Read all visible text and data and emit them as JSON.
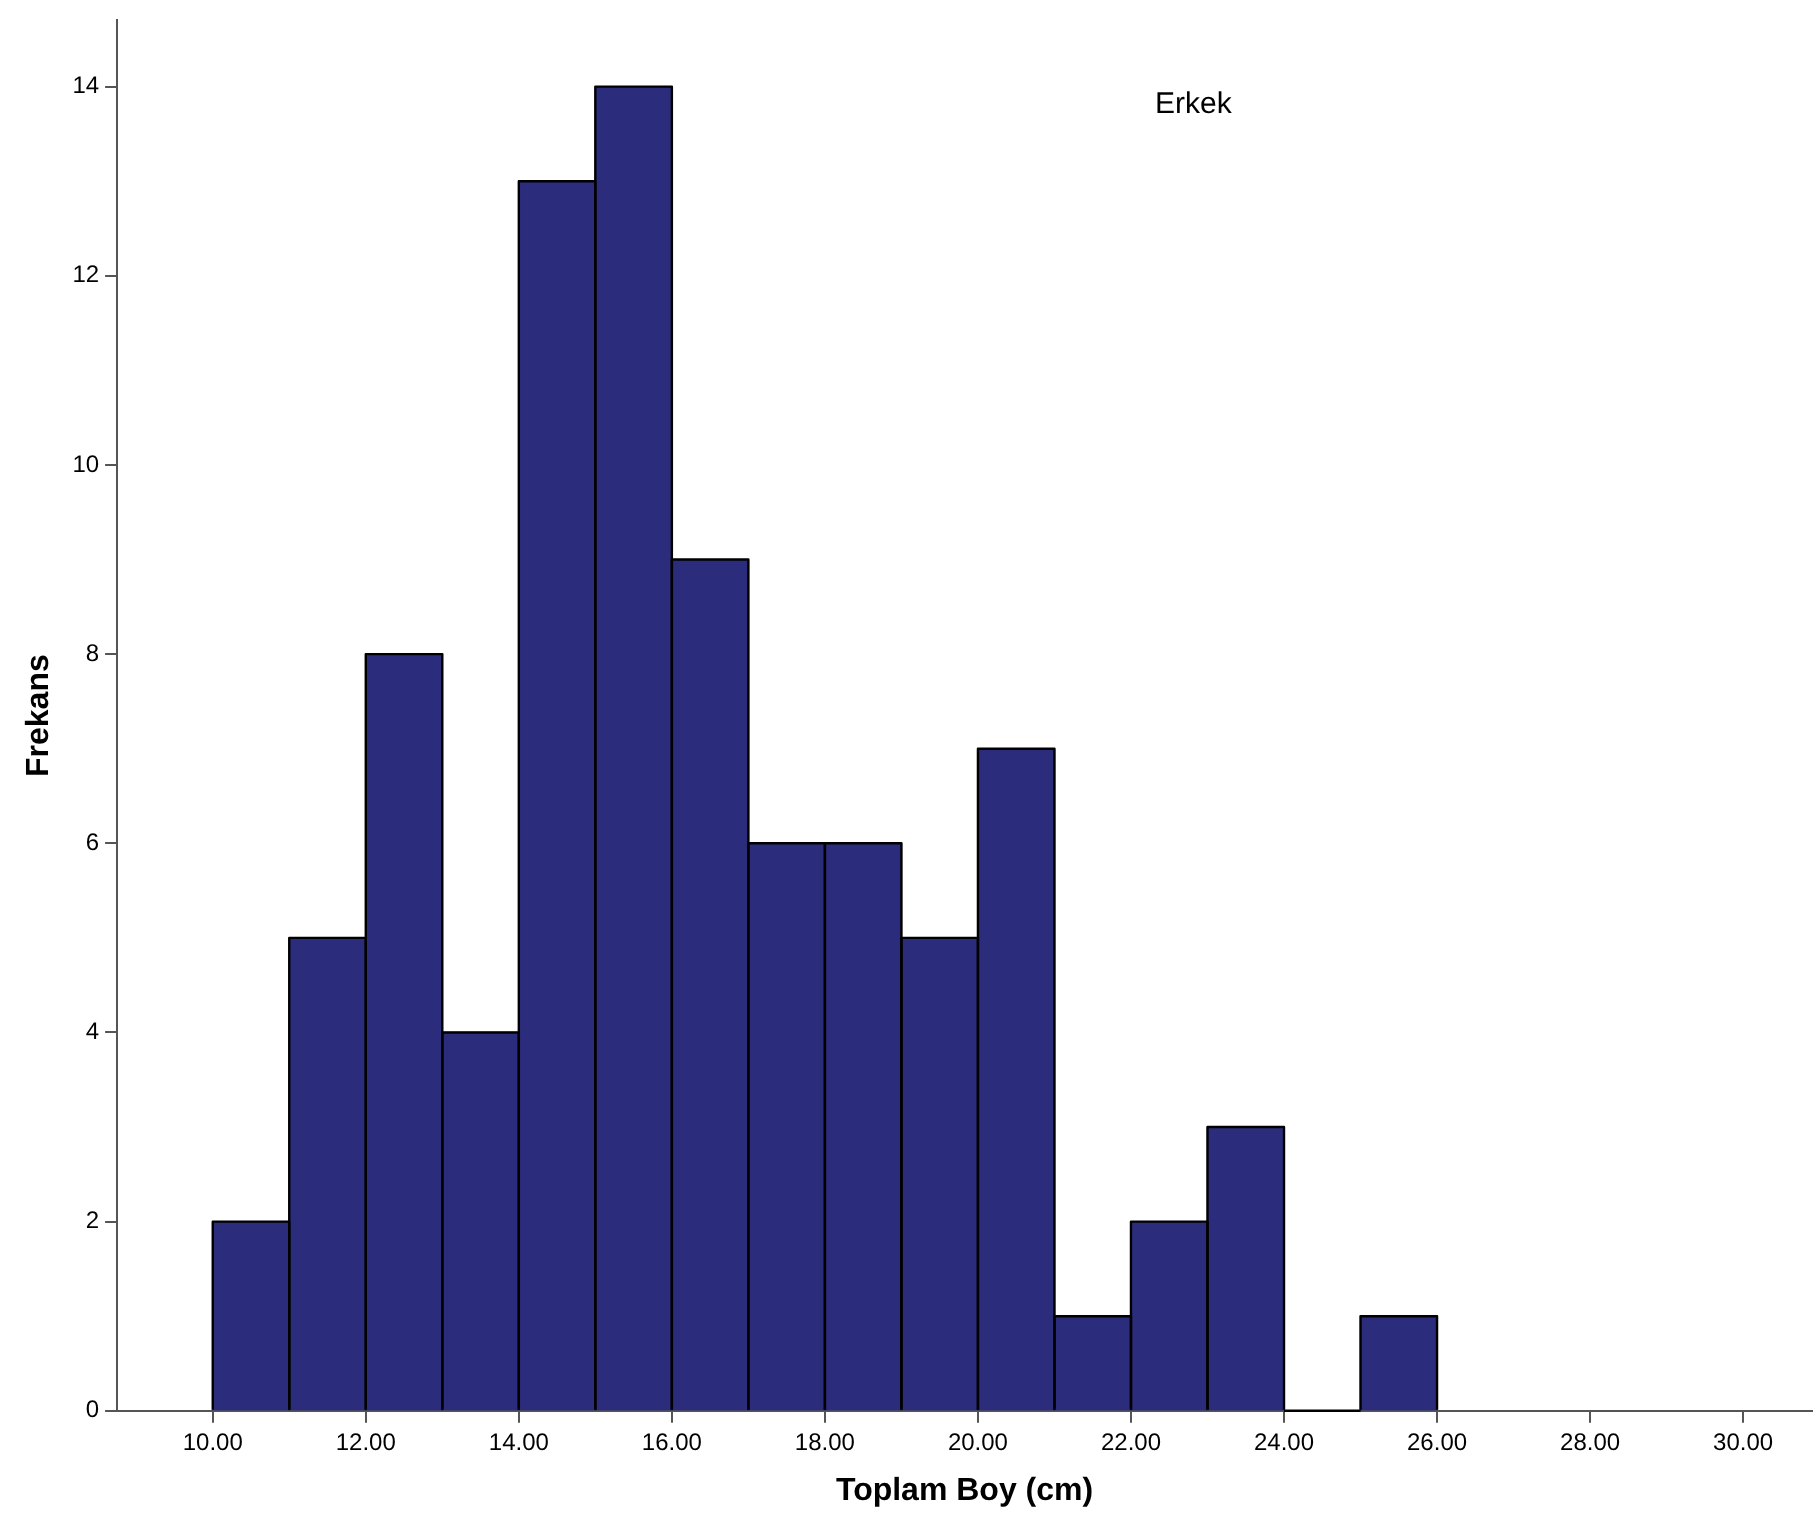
{
  "chart_data": {
    "type": "histogram",
    "xlabel": "Toplam Boy (cm)",
    "ylabel": "Frekans",
    "annotations": [
      "Erkek"
    ],
    "bins": [
      10,
      11,
      12,
      13,
      14,
      15,
      16,
      17,
      18,
      19,
      20,
      21,
      22,
      23,
      24,
      25,
      26
    ],
    "values": [
      2,
      5,
      8,
      4,
      13,
      14,
      9,
      6,
      6,
      5,
      7,
      1,
      2,
      3,
      0,
      1
    ],
    "color": "#2b2d7c",
    "xlim": [
      8.75,
      30.9
    ],
    "xticks": [
      {
        "value": 10,
        "label": "10.00"
      },
      {
        "value": 12,
        "label": "12.00"
      },
      {
        "value": 14,
        "label": "14.00"
      },
      {
        "value": 16,
        "label": "16.00"
      },
      {
        "value": 18,
        "label": "18.00"
      },
      {
        "value": 20,
        "label": "20.00"
      },
      {
        "value": 22,
        "label": "22.00"
      },
      {
        "value": 24,
        "label": "24.00"
      },
      {
        "value": 26,
        "label": "26.00"
      },
      {
        "value": 28,
        "label": "28.00"
      },
      {
        "value": 30,
        "label": "30.00"
      }
    ],
    "ylim": [
      0,
      14.7
    ],
    "yticks": [
      0,
      2,
      4,
      6,
      8,
      10,
      12,
      14
    ],
    "grid": false,
    "legend": false
  }
}
